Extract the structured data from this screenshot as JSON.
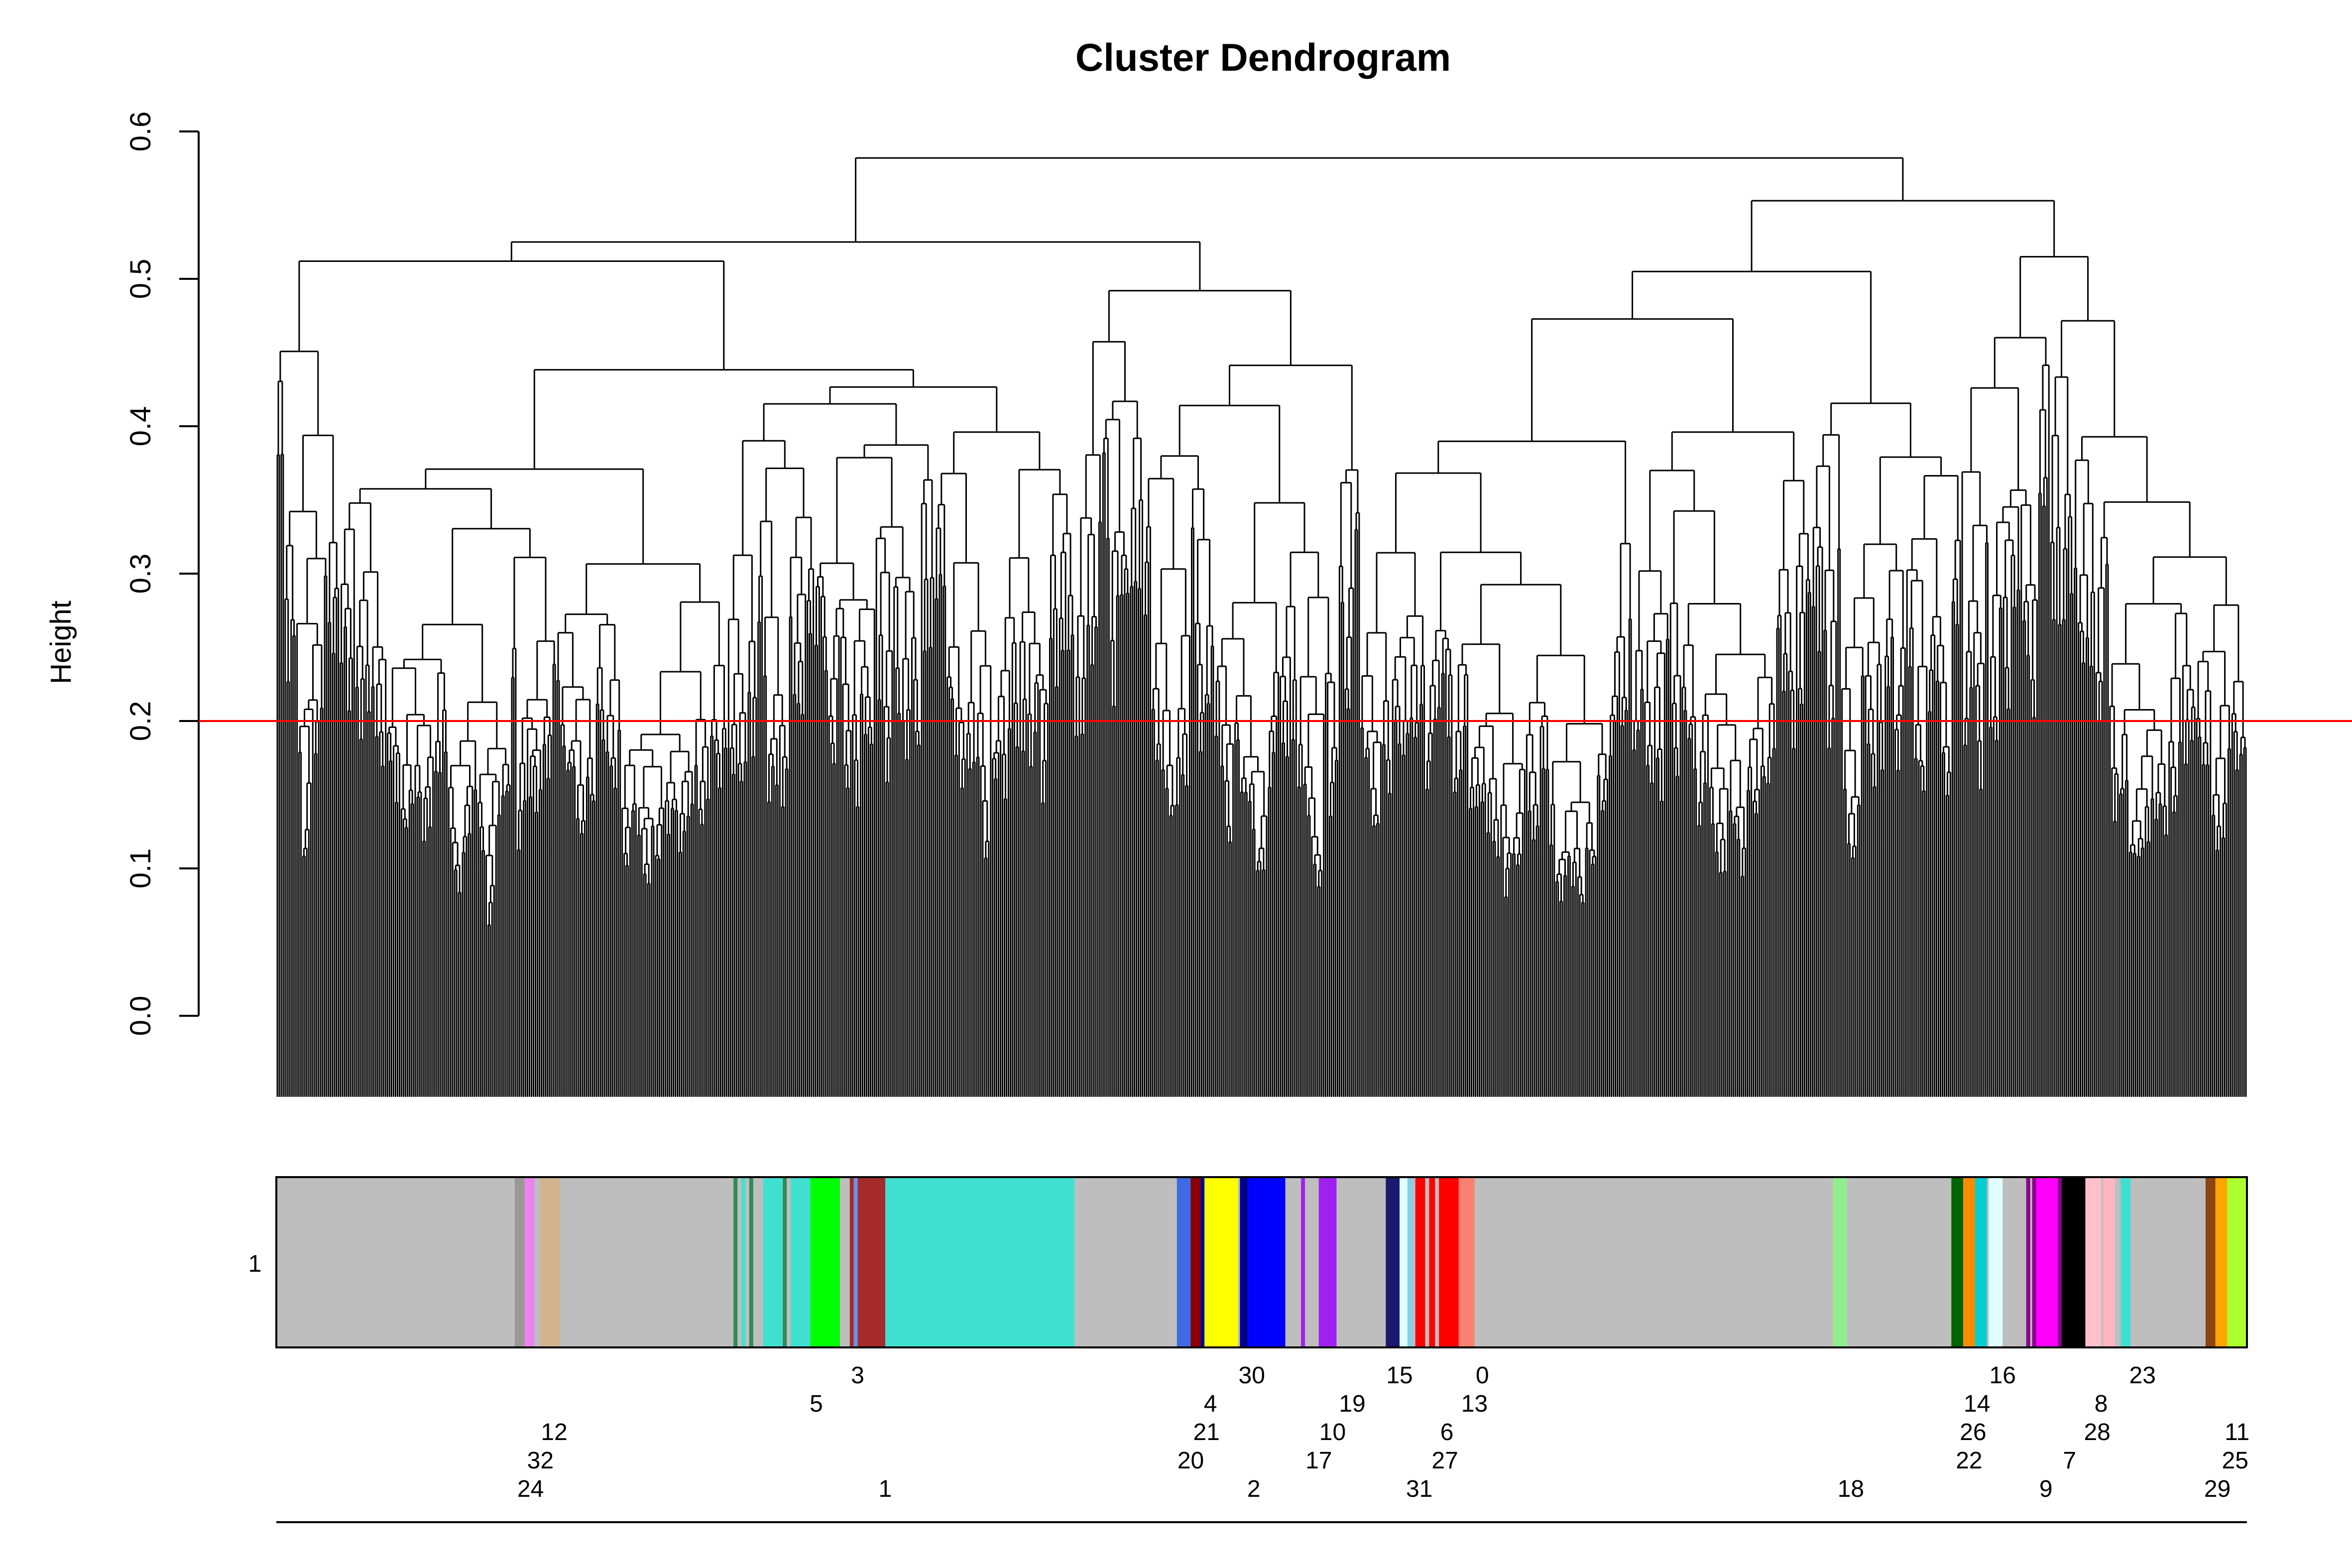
{
  "chart_data": {
    "type": "dendrogram",
    "title": "Cluster Dendrogram",
    "ylabel": "Height",
    "xlabel": "",
    "ylim": [
      0,
      0.6
    ],
    "yticks": [
      0.0,
      0.1,
      0.2,
      0.3,
      0.4,
      0.5,
      0.6
    ],
    "ytick_labels": [
      "0.0",
      "0.1",
      "0.2",
      "0.3",
      "0.4",
      "0.5",
      "0.6"
    ],
    "cut_height": 0.2,
    "cut_color": "#ff0000",
    "leaf_count": 1000,
    "top_merges": [
      {
        "height": 0.582,
        "joins": "left branch (0.525) with right branch (0.553)"
      },
      {
        "height": 0.553,
        "joins": "middle-right group with far-right group"
      },
      {
        "height": 0.525,
        "joins": "large left group with middle group"
      }
    ],
    "color_bar": {
      "row_label": "1",
      "background": "#bebebe",
      "segments": [
        {
          "label": "24",
          "x": 0.121,
          "w": 0.005,
          "color": "#999999"
        },
        {
          "label": "32",
          "x": 0.126,
          "w": 0.005,
          "color": "#ee82ee"
        },
        {
          "label": "12",
          "x": 0.134,
          "w": 0.01,
          "color": "#d2b48c"
        },
        {
          "label": "",
          "x": 0.232,
          "w": 0.002,
          "color": "#2e8b57"
        },
        {
          "label": "",
          "x": 0.236,
          "w": 0.002,
          "color": "#40e0d0"
        },
        {
          "label": "",
          "x": 0.24,
          "w": 0.002,
          "color": "#2e8b57"
        },
        {
          "label": "",
          "x": 0.247,
          "w": 0.01,
          "color": "#40e0d0"
        },
        {
          "label": "",
          "x": 0.257,
          "w": 0.002,
          "color": "#2e8b57"
        },
        {
          "label": "",
          "x": 0.261,
          "w": 0.01,
          "color": "#40e0d0"
        },
        {
          "label": "5",
          "x": 0.271,
          "w": 0.015,
          "color": "#00ff00"
        },
        {
          "label": "",
          "x": 0.291,
          "w": 0.002,
          "color": "#a52a2a"
        },
        {
          "label": "3",
          "x": 0.293,
          "w": 0.002,
          "color": "#6495ed"
        },
        {
          "label": "3",
          "x": 0.295,
          "w": 0.014,
          "color": "#a52a2a"
        },
        {
          "label": "1",
          "x": 0.309,
          "w": 0.096,
          "color": "#40e0d0"
        },
        {
          "label": "20",
          "x": 0.457,
          "w": 0.007,
          "color": "#4169e1"
        },
        {
          "label": "21",
          "x": 0.464,
          "w": 0.005,
          "color": "#8b0000"
        },
        {
          "label": "4",
          "x": 0.469,
          "w": 0.002,
          "color": "#00008b"
        },
        {
          "label": "2",
          "x": 0.471,
          "w": 0.017,
          "color": "#ffff00"
        },
        {
          "label": "30",
          "x": 0.489,
          "w": 0.004,
          "color": "#00008b"
        },
        {
          "label": "30",
          "x": 0.493,
          "w": 0.019,
          "color": "#0000ff"
        },
        {
          "label": "17",
          "x": 0.52,
          "w": 0.002,
          "color": "#a020f0"
        },
        {
          "label": "10",
          "x": 0.529,
          "w": 0.009,
          "color": "#a020f0"
        },
        {
          "label": "15",
          "x": 0.563,
          "w": 0.007,
          "color": "#191970"
        },
        {
          "label": "31",
          "x": 0.57,
          "w": 0.004,
          "color": "#e0ffff"
        },
        {
          "label": "19",
          "x": 0.574,
          "w": 0.003,
          "color": "#87ceeb"
        },
        {
          "label": "27",
          "x": 0.578,
          "w": 0.005,
          "color": "#ff0000"
        },
        {
          "label": "6",
          "x": 0.585,
          "w": 0.003,
          "color": "#ff0000"
        },
        {
          "label": "6",
          "x": 0.59,
          "w": 0.01,
          "color": "#ff0000"
        },
        {
          "label": "0",
          "x": 0.6,
          "w": 0.008,
          "color": "#fa8072"
        },
        {
          "label": "18",
          "x": 0.79,
          "w": 0.007,
          "color": "#90ee90"
        },
        {
          "label": "22",
          "x": 0.85,
          "w": 0.006,
          "color": "#006400"
        },
        {
          "label": "26",
          "x": 0.856,
          "w": 0.006,
          "color": "#ff8c00"
        },
        {
          "label": "14",
          "x": 0.862,
          "w": 0.006,
          "color": "#00ced1"
        },
        {
          "label": "16",
          "x": 0.869,
          "w": 0.007,
          "color": "#e0ffff"
        },
        {
          "label": "9",
          "x": 0.888,
          "w": 0.002,
          "color": "#8b008b"
        },
        {
          "label": "",
          "x": 0.891,
          "w": 0.002,
          "color": "#8b008b"
        },
        {
          "label": "7",
          "x": 0.893,
          "w": 0.011,
          "color": "#ff00ff"
        },
        {
          "label": "",
          "x": 0.904,
          "w": 0.002,
          "color": "#8b008b"
        },
        {
          "label": "",
          "x": 0.906,
          "w": 0.012,
          "color": "#000000"
        },
        {
          "label": "28",
          "x": 0.918,
          "w": 0.008,
          "color": "#ffc0cb"
        },
        {
          "label": "8",
          "x": 0.927,
          "w": 0.006,
          "color": "#ffb6c1"
        },
        {
          "label": "23",
          "x": 0.936,
          "w": 0.005,
          "color": "#40e0d0"
        },
        {
          "label": "29",
          "x": 0.979,
          "w": 0.005,
          "color": "#8b4513"
        },
        {
          "label": "25",
          "x": 0.984,
          "w": 0.006,
          "color": "#ffa500"
        },
        {
          "label": "11",
          "x": 0.99,
          "w": 0.01,
          "color": "#adff2f"
        }
      ],
      "module_labels": [
        {
          "text": "3",
          "x": 0.295,
          "row": 0
        },
        {
          "text": "5",
          "x": 0.274,
          "row": 1
        },
        {
          "text": "12",
          "x": 0.141,
          "row": 2
        },
        {
          "text": "32",
          "x": 0.134,
          "row": 3
        },
        {
          "text": "24",
          "x": 0.129,
          "row": 4
        },
        {
          "text": "1",
          "x": 0.309,
          "row": 4
        },
        {
          "text": "30",
          "x": 0.495,
          "row": 0
        },
        {
          "text": "4",
          "x": 0.474,
          "row": 1
        },
        {
          "text": "21",
          "x": 0.472,
          "row": 2
        },
        {
          "text": "20",
          "x": 0.464,
          "row": 3
        },
        {
          "text": "2",
          "x": 0.496,
          "row": 4
        },
        {
          "text": "19",
          "x": 0.546,
          "row": 1
        },
        {
          "text": "10",
          "x": 0.536,
          "row": 2
        },
        {
          "text": "17",
          "x": 0.529,
          "row": 3
        },
        {
          "text": "15",
          "x": 0.57,
          "row": 0
        },
        {
          "text": "0",
          "x": 0.612,
          "row": 0
        },
        {
          "text": "13",
          "x": 0.608,
          "row": 1
        },
        {
          "text": "6",
          "x": 0.594,
          "row": 2
        },
        {
          "text": "27",
          "x": 0.593,
          "row": 3
        },
        {
          "text": "31",
          "x": 0.58,
          "row": 4
        },
        {
          "text": "18",
          "x": 0.799,
          "row": 4
        },
        {
          "text": "16",
          "x": 0.876,
          "row": 0
        },
        {
          "text": "14",
          "x": 0.863,
          "row": 1
        },
        {
          "text": "26",
          "x": 0.861,
          "row": 2
        },
        {
          "text": "22",
          "x": 0.859,
          "row": 3
        },
        {
          "text": "23",
          "x": 0.947,
          "row": 0
        },
        {
          "text": "8",
          "x": 0.926,
          "row": 1
        },
        {
          "text": "28",
          "x": 0.924,
          "row": 2
        },
        {
          "text": "7",
          "x": 0.91,
          "row": 3
        },
        {
          "text": "9",
          "x": 0.898,
          "row": 4
        },
        {
          "text": "11",
          "x": 0.995,
          "row": 2
        },
        {
          "text": "25",
          "x": 0.994,
          "row": 3
        },
        {
          "text": "29",
          "x": 0.985,
          "row": 4
        }
      ]
    }
  }
}
